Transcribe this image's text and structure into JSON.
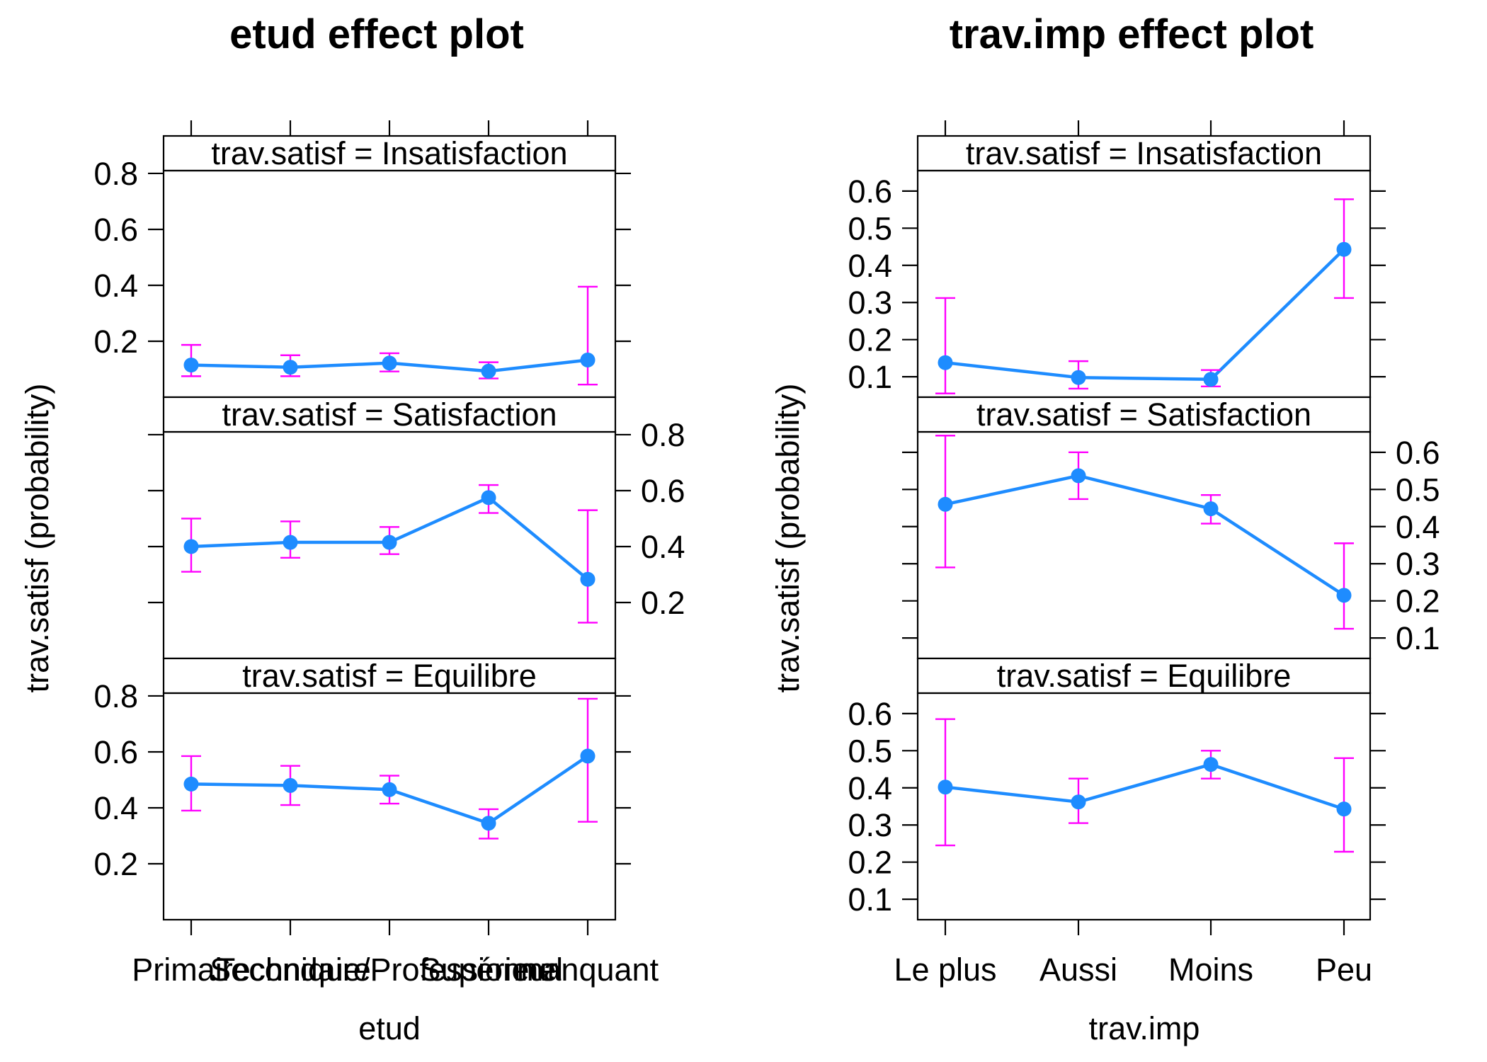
{
  "colors": {
    "line": "#1E8CFF",
    "point": "#1E8CFF",
    "error_bar": "#FF00FF",
    "frame": "#000000",
    "strip_background": "#FFFFFF"
  },
  "chart_data": [
    {
      "type": "line",
      "title": "etud effect plot",
      "xlabel": "etud",
      "ylabel": "trav.satisf (probability)",
      "categories": [
        "Primaire",
        "Secondaire",
        "Technique/Professionnel",
        "Supérieur",
        "manquant"
      ],
      "panels": [
        {
          "strip": "trav.satisf = Insatisfaction",
          "y_ticks": [
            0.2,
            0.4,
            0.6,
            0.8
          ],
          "y_tick_labels": [
            "0.2",
            "0.4",
            "0.6",
            "0.8"
          ],
          "tick_labels_side": "left",
          "ylim": [
            0.0,
            0.81
          ],
          "values": [
            0.115,
            0.107,
            0.122,
            0.093,
            0.133
          ],
          "lower": [
            0.075,
            0.075,
            0.092,
            0.067,
            0.045
          ],
          "upper": [
            0.187,
            0.15,
            0.157,
            0.125,
            0.395
          ]
        },
        {
          "strip": "trav.satisf = Satisfaction",
          "y_ticks": [
            0.2,
            0.4,
            0.6,
            0.8
          ],
          "y_tick_labels": [
            "0.2",
            "0.4",
            "0.6",
            "0.8"
          ],
          "tick_labels_side": "right",
          "ylim": [
            0.0,
            0.81
          ],
          "values": [
            0.4,
            0.415,
            0.415,
            0.575,
            0.283
          ],
          "lower": [
            0.31,
            0.36,
            0.373,
            0.52,
            0.128
          ],
          "upper": [
            0.5,
            0.49,
            0.47,
            0.62,
            0.53
          ]
        },
        {
          "strip": "trav.satisf = Equilibre",
          "y_ticks": [
            0.2,
            0.4,
            0.6,
            0.8
          ],
          "y_tick_labels": [
            "0.2",
            "0.4",
            "0.6",
            "0.8"
          ],
          "tick_labels_side": "left",
          "ylim": [
            0.0,
            0.81
          ],
          "values": [
            0.485,
            0.48,
            0.465,
            0.345,
            0.585
          ],
          "lower": [
            0.39,
            0.41,
            0.415,
            0.29,
            0.35
          ],
          "upper": [
            0.585,
            0.55,
            0.515,
            0.395,
            0.79
          ]
        }
      ]
    },
    {
      "type": "line",
      "title": "trav.imp effect plot",
      "xlabel": "trav.imp",
      "ylabel": "trav.satisf (probability)",
      "categories": [
        "Le plus",
        "Aussi",
        "Moins",
        "Peu"
      ],
      "panels": [
        {
          "strip": "trav.satisf = Insatisfaction",
          "y_ticks": [
            0.1,
            0.2,
            0.3,
            0.4,
            0.5,
            0.6
          ],
          "y_tick_labels": [
            "0.1",
            "0.2",
            "0.3",
            "0.4",
            "0.5",
            "0.6"
          ],
          "tick_labels_side": "left",
          "ylim": [
            0.045,
            0.655
          ],
          "values": [
            0.138,
            0.098,
            0.093,
            0.443
          ],
          "lower": [
            0.055,
            0.068,
            0.074,
            0.312
          ],
          "upper": [
            0.312,
            0.142,
            0.118,
            0.578
          ]
        },
        {
          "strip": "trav.satisf = Satisfaction",
          "y_ticks": [
            0.1,
            0.2,
            0.3,
            0.4,
            0.5,
            0.6
          ],
          "y_tick_labels": [
            "0.1",
            "0.2",
            "0.3",
            "0.4",
            "0.5",
            "0.6"
          ],
          "tick_labels_side": "right",
          "ylim": [
            0.045,
            0.655
          ],
          "values": [
            0.46,
            0.537,
            0.448,
            0.215
          ],
          "lower": [
            0.29,
            0.474,
            0.408,
            0.125
          ],
          "upper": [
            0.645,
            0.6,
            0.485,
            0.355
          ]
        },
        {
          "strip": "trav.satisf = Equilibre",
          "y_ticks": [
            0.1,
            0.2,
            0.3,
            0.4,
            0.5,
            0.6
          ],
          "y_tick_labels": [
            "0.1",
            "0.2",
            "0.3",
            "0.4",
            "0.5",
            "0.6"
          ],
          "tick_labels_side": "left",
          "ylim": [
            0.045,
            0.655
          ],
          "values": [
            0.402,
            0.362,
            0.463,
            0.343
          ],
          "lower": [
            0.245,
            0.305,
            0.425,
            0.228
          ],
          "upper": [
            0.585,
            0.425,
            0.5,
            0.48
          ]
        }
      ]
    }
  ]
}
